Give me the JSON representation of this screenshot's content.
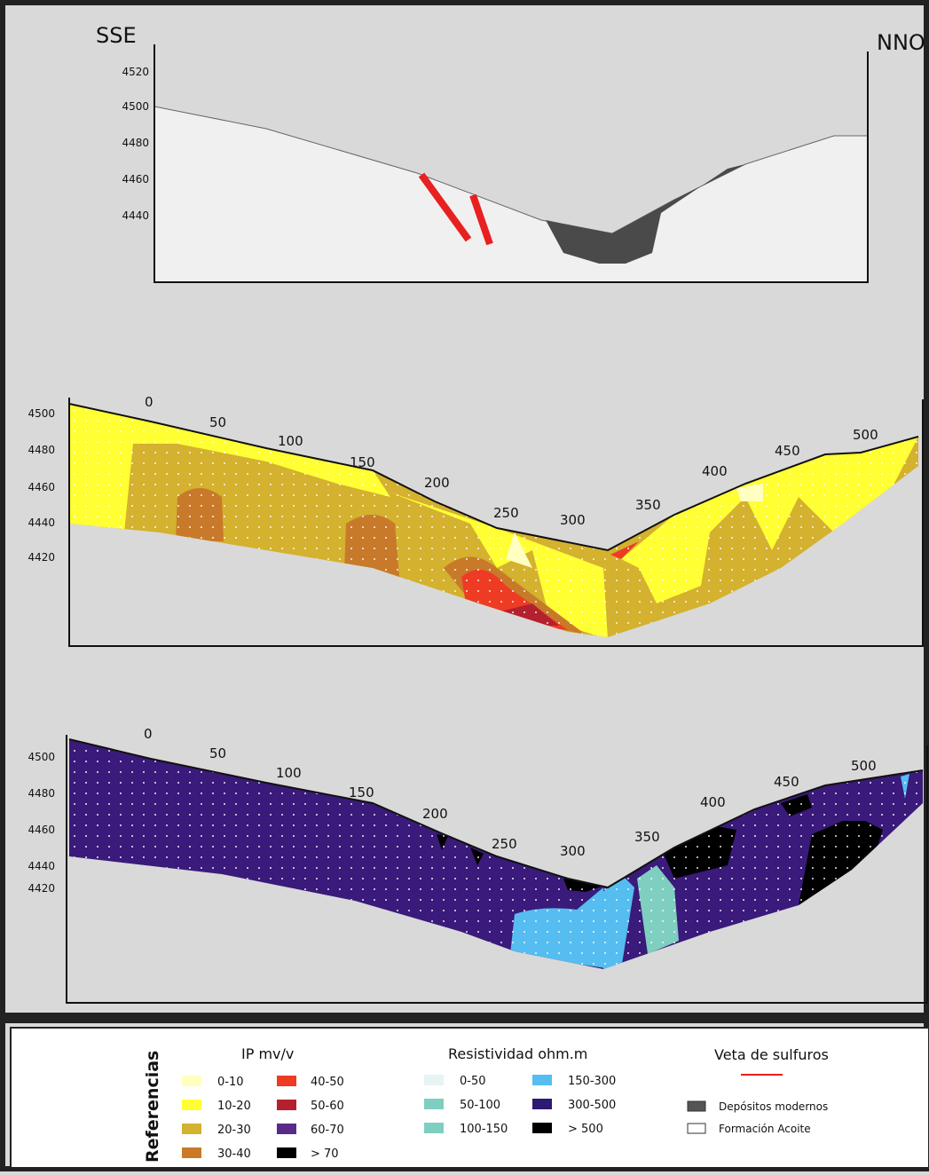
{
  "top_section": {
    "left_label": "SSE",
    "right_label": "NNO",
    "elevations": [
      "4520",
      "4500",
      "4480",
      "4460",
      "4440"
    ]
  },
  "ip_section": {
    "elevations": [
      "4500",
      "4480",
      "4460",
      "4440",
      "4420"
    ],
    "distances": [
      "0",
      "50",
      "100",
      "150",
      "200",
      "250",
      "300",
      "350",
      "400",
      "450",
      "500"
    ]
  },
  "resistivity_section": {
    "elevations": [
      "4500",
      "4480",
      "4460",
      "4440",
      "4420"
    ],
    "distances": [
      "0",
      "50",
      "100",
      "150",
      "200",
      "250",
      "300",
      "350",
      "400",
      "450",
      "500"
    ]
  },
  "legend": {
    "title": "Referencias",
    "ip": {
      "title": "IP mv/v",
      "items": [
        "0-10",
        "10-20",
        "20-30",
        "30-40",
        "40-50",
        "50-60",
        "60-70",
        "> 70"
      ]
    },
    "resistivity": {
      "title": "Resistividad ohm.m",
      "items": [
        "0-50",
        "50-100",
        "100-150",
        "150-300",
        "300-500",
        "> 500"
      ]
    },
    "vein": {
      "title": "Veta de sulfuros"
    },
    "units": [
      "Depósitos modernos",
      "Formación Acoite"
    ]
  }
}
